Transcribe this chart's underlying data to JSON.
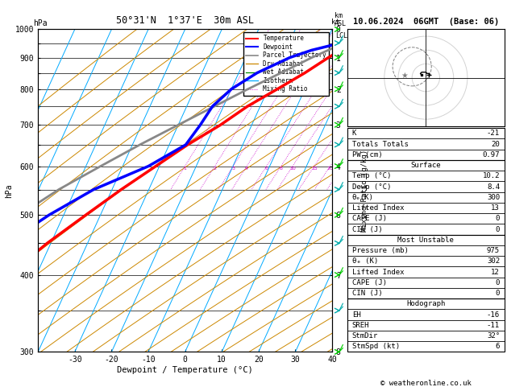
{
  "title_left": "50°31'N  1°37'E  30m ASL",
  "title_right": "10.06.2024  06GMT  (Base: 06)",
  "xlabel": "Dewpoint / Temperature (°C)",
  "ylabel_left": "hPa",
  "pressure_levels_major": [
    300,
    400,
    500,
    600,
    700,
    800,
    900,
    1000
  ],
  "pressure_levels_minor": [
    350,
    450,
    550,
    650,
    750,
    850,
    950
  ],
  "temp_ticks": [
    -30,
    -20,
    -10,
    0,
    10,
    20,
    30,
    40
  ],
  "pmin": 300,
  "pmax": 1000,
  "Tmin": -40,
  "Tmax": 40,
  "skew": 40,
  "temp_profile": {
    "pressure": [
      1000,
      975,
      950,
      925,
      900,
      850,
      800,
      750,
      700,
      650,
      600,
      550,
      500,
      450,
      400,
      350,
      300
    ],
    "temp": [
      10.2,
      9.5,
      8.0,
      5.0,
      2.5,
      -2.0,
      -7.5,
      -13.5,
      -18.5,
      -25.0,
      -31.0,
      -37.5,
      -44.0,
      -51.0,
      -57.5,
      -62.0,
      -57.0
    ]
  },
  "dewpoint_profile": {
    "pressure": [
      1000,
      975,
      950,
      925,
      900,
      850,
      800,
      750,
      700,
      650,
      600,
      550,
      500,
      450,
      400,
      350,
      300
    ],
    "dewp": [
      8.4,
      7.0,
      4.0,
      -3.0,
      -8.0,
      -15.0,
      -20.0,
      -23.0,
      -24.0,
      -25.5,
      -33.0,
      -45.0,
      -54.0,
      -62.0,
      -68.0,
      -73.0,
      -75.0
    ]
  },
  "parcel_profile": {
    "pressure": [
      1000,
      975,
      950,
      925,
      900,
      850,
      800,
      750,
      700,
      650,
      600,
      550,
      500,
      450,
      400,
      350,
      300
    ],
    "temp": [
      10.2,
      8.0,
      5.0,
      1.5,
      -2.0,
      -8.5,
      -15.5,
      -22.5,
      -30.0,
      -38.0,
      -46.0,
      -54.5,
      -62.0,
      -68.0,
      -73.0,
      -77.0,
      -80.0
    ]
  },
  "mixing_ratio_values": [
    1,
    2,
    3,
    4,
    6,
    8,
    10,
    15,
    20,
    25
  ],
  "km_pressures": [
    1000,
    900,
    800,
    700,
    600,
    500,
    400,
    300
  ],
  "km_vals": [
    0,
    1,
    2,
    3,
    4,
    6,
    7,
    8
  ],
  "lcl_pressure": 975,
  "stats": {
    "K": -21,
    "Totals_Totals": 20,
    "PW_cm": 0.97,
    "Surface_Temp": 10.2,
    "Surface_Dewp": 8.4,
    "Surface_theta_e": 300,
    "Surface_LiftedIndex": 13,
    "Surface_CAPE": 0,
    "Surface_CIN": 0,
    "MU_Pressure": 975,
    "MU_theta_e": 302,
    "MU_LiftedIndex": 12,
    "MU_CAPE": 0,
    "MU_CIN": 0,
    "EH": -16,
    "SREH": -11,
    "StmDir": 32,
    "StmSpd": 6
  },
  "colors": {
    "temperature": "#ff0000",
    "dewpoint": "#0000ff",
    "parcel": "#888888",
    "dry_adiabat": "#cc8800",
    "wet_adiabat": "#008800",
    "isotherm": "#00aaff",
    "mixing_ratio": "#cc00cc",
    "background": "#ffffff"
  },
  "wind_symbols": {
    "pressures": [
      300,
      350,
      400,
      450,
      500,
      550,
      600,
      650,
      700,
      750,
      800,
      850,
      900,
      950,
      1000
    ],
    "colors_green": [
      300,
      400,
      500,
      600,
      700,
      800,
      900,
      1000
    ],
    "colors_cyan": [
      350,
      450,
      550,
      650,
      750,
      850,
      950
    ]
  }
}
